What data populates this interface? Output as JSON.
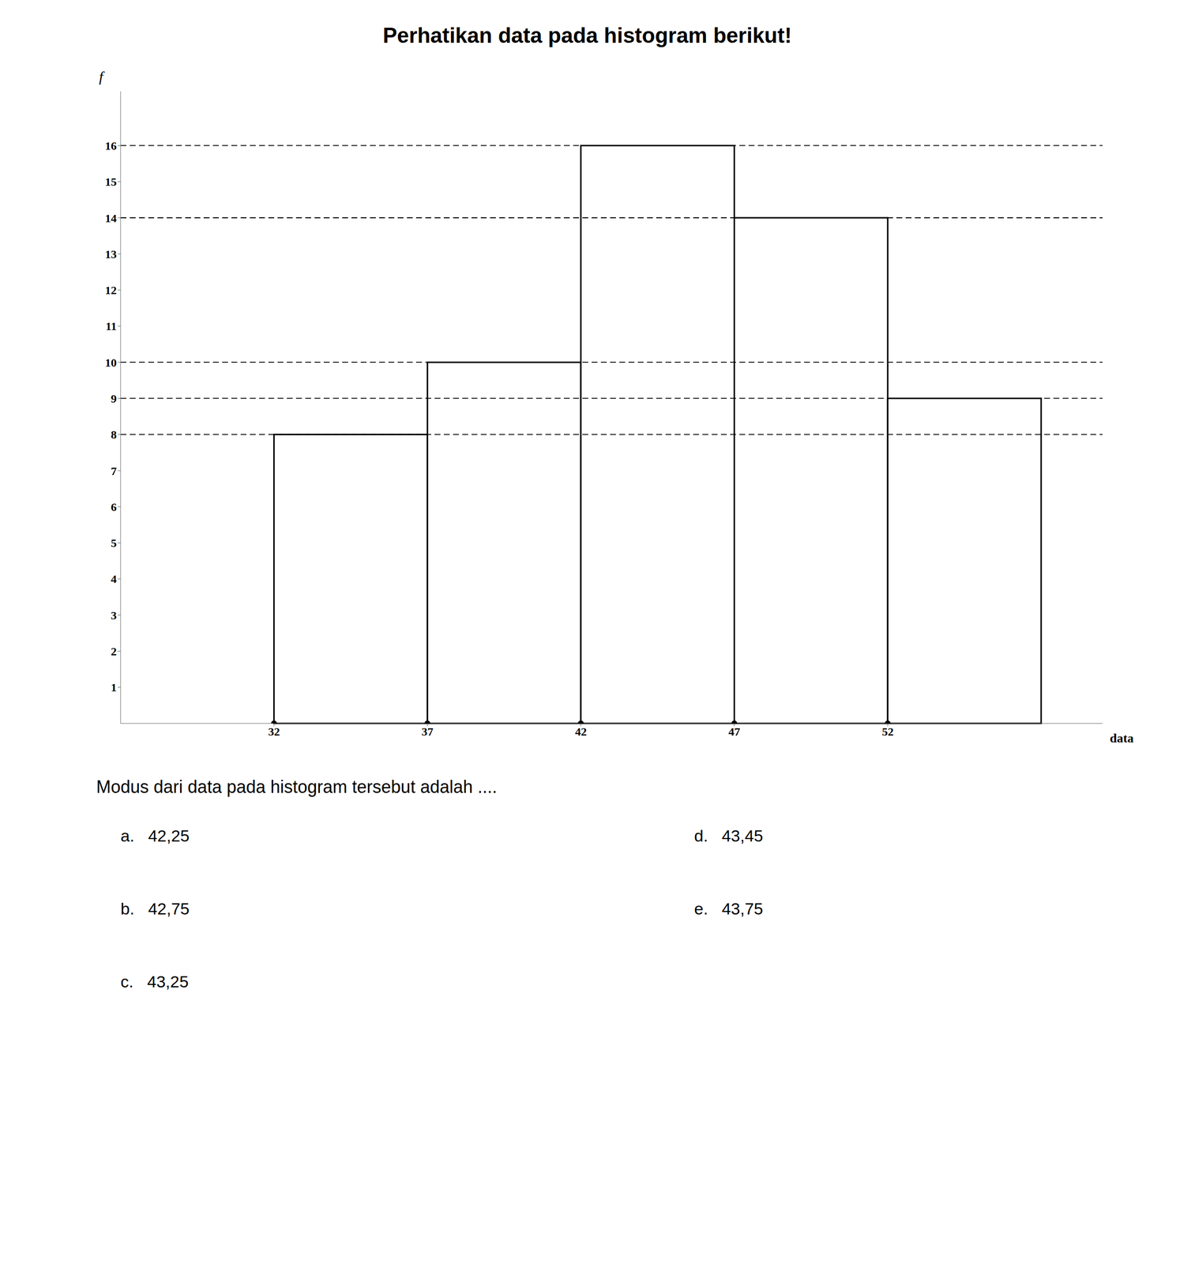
{
  "chart_data": {
    "type": "histogram",
    "title": "Perhatikan data pada histogram berikut!",
    "bins": [
      32,
      37,
      42,
      47,
      52,
      57
    ],
    "values": [
      8,
      10,
      16,
      14,
      9
    ],
    "x_label": "data",
    "y_label": "f",
    "xlim": [
      27,
      59
    ],
    "ylim": [
      0,
      17.5
    ],
    "xticks": [
      32,
      37,
      42,
      47,
      52
    ],
    "yticks": [
      1,
      2,
      3,
      4,
      5,
      6,
      7,
      8,
      9,
      10,
      11,
      12,
      13,
      14,
      15,
      16
    ],
    "hlines": [
      8,
      9,
      10,
      14,
      16
    ],
    "color": "#ffffff",
    "grid": false,
    "annotations": [
      "Modus dari data pada histogram tersebut adalah ....",
      "a.   42,25",
      "b.   42,75",
      "c.   43,25",
      "d.   43,45",
      "e.   43,75"
    ]
  }
}
